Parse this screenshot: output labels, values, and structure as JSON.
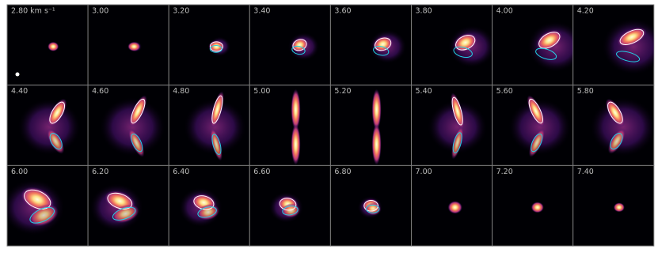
{
  "panels": [
    {
      "label": "2.80 km s⁻¹"
    },
    {
      "label": "3.00"
    },
    {
      "label": "3.20"
    },
    {
      "label": "3.40"
    },
    {
      "label": "3.60"
    },
    {
      "label": "3.80"
    },
    {
      "label": "4.00"
    },
    {
      "label": "4.20"
    },
    {
      "label": "4.40"
    },
    {
      "label": "4.60"
    },
    {
      "label": "4.80"
    },
    {
      "label": "5.00"
    },
    {
      "label": "5.20"
    },
    {
      "label": "5.40"
    },
    {
      "label": "5.60"
    },
    {
      "label": "5.80"
    },
    {
      "label": "6.00"
    },
    {
      "label": "6.20"
    },
    {
      "label": "6.40"
    },
    {
      "label": "6.60"
    },
    {
      "label": "6.80"
    },
    {
      "label": "7.00"
    },
    {
      "label": "7.20"
    },
    {
      "label": "7.40"
    }
  ]
}
